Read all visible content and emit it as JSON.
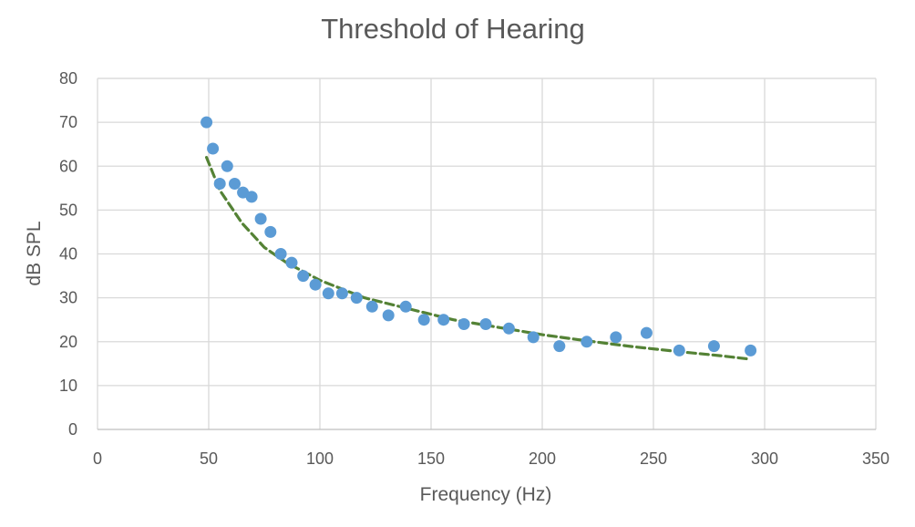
{
  "chart_data": {
    "type": "scatter",
    "title": "Threshold of Hearing",
    "xlabel": "Frequency (Hz)",
    "ylabel": "dB SPL",
    "xlim": [
      0,
      350
    ],
    "ylim": [
      0,
      80
    ],
    "x_ticks": [
      0,
      50,
      100,
      150,
      200,
      250,
      300,
      350
    ],
    "y_ticks": [
      0,
      10,
      20,
      30,
      40,
      50,
      60,
      70,
      80
    ],
    "grid": true,
    "legend": "none",
    "series": [
      {
        "marker_color": "#5b9bd5",
        "points": [
          [
            49,
            70
          ],
          [
            51.9,
            64
          ],
          [
            55,
            56
          ],
          [
            58.3,
            60
          ],
          [
            61.7,
            56
          ],
          [
            65.4,
            54
          ],
          [
            69.3,
            53
          ],
          [
            73.4,
            48
          ],
          [
            77.8,
            45
          ],
          [
            82.4,
            40
          ],
          [
            87.3,
            38
          ],
          [
            92.5,
            35
          ],
          [
            98,
            33
          ],
          [
            103.8,
            31
          ],
          [
            110,
            31
          ],
          [
            116.5,
            30
          ],
          [
            123.5,
            28
          ],
          [
            130.8,
            26
          ],
          [
            138.6,
            28
          ],
          [
            146.8,
            25
          ],
          [
            155.6,
            25
          ],
          [
            164.8,
            24
          ],
          [
            174.6,
            24
          ],
          [
            185,
            23
          ],
          [
            196,
            21
          ],
          [
            207.7,
            19
          ],
          [
            220,
            20
          ],
          [
            233.1,
            21
          ],
          [
            246.9,
            22
          ],
          [
            261.6,
            18
          ],
          [
            277.2,
            19
          ],
          [
            293.7,
            18
          ]
        ]
      }
    ],
    "trendline": {
      "style": "dashed",
      "color": "#548235",
      "x_range": [
        49,
        293.7
      ],
      "points": [
        [
          49,
          62
        ],
        [
          55,
          54.5
        ],
        [
          65,
          47
        ],
        [
          75,
          41.5
        ],
        [
          85,
          38
        ],
        [
          100,
          34
        ],
        [
          120,
          30
        ],
        [
          140,
          27.5
        ],
        [
          160,
          25
        ],
        [
          180,
          23.3
        ],
        [
          200,
          21.6
        ],
        [
          220,
          20.2
        ],
        [
          240,
          18.9
        ],
        [
          260,
          17.8
        ],
        [
          280,
          16.8
        ],
        [
          293.7,
          16
        ]
      ]
    }
  }
}
